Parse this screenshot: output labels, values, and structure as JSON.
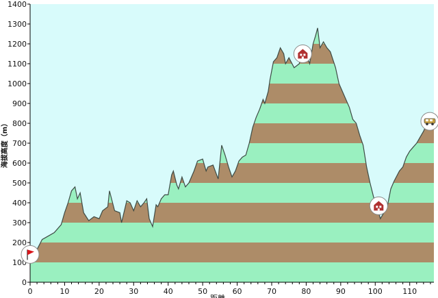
{
  "chart_data": {
    "type": "area",
    "title": "",
    "xlabel": "距離",
    "ylabel": "海拔高度（m）",
    "xlim": [
      0,
      117
    ],
    "ylim": [
      0,
      1400
    ],
    "x_ticks": [
      0,
      10,
      20,
      30,
      40,
      50,
      60,
      70,
      80,
      90,
      100,
      110
    ],
    "y_ticks": [
      0,
      100,
      200,
      300,
      400,
      500,
      600,
      700,
      800,
      900,
      1000,
      1100,
      1200,
      1300,
      1400
    ],
    "band_step": 100,
    "colors": {
      "background": "#d8fbfb",
      "band_green": "#9af0c0",
      "band_brown": "#ad8c68",
      "outline": "#3d4a44",
      "axis": "#000000",
      "marker_red": "#d8151b",
      "marker_hut": "#b03030",
      "marker_vehicle": "#c8a040"
    },
    "profile": {
      "x": [
        0,
        2,
        3.5,
        5,
        7,
        9,
        10,
        11,
        12,
        13,
        13.7,
        14.5,
        15.5,
        17,
        18.5,
        20,
        21,
        22.5,
        23,
        24.5,
        26,
        26.5,
        28,
        29,
        30,
        31,
        32,
        33,
        33.8,
        34.5,
        35.5,
        36.5,
        37,
        38,
        39,
        40,
        41,
        41.5,
        42.5,
        43,
        44,
        45,
        46,
        47.5,
        48.5,
        50,
        51,
        51.5,
        53,
        54.5,
        55.5,
        56.5,
        57.5,
        58.5,
        59.5,
        60.5,
        61.5,
        62.5,
        63.5,
        64.5,
        65.5,
        66.5,
        67.5,
        68,
        69,
        69.5,
        70.5,
        71.5,
        72.5,
        73.5,
        74,
        75,
        76.5,
        78,
        79,
        80,
        81,
        82,
        82.7,
        83.3,
        84,
        85,
        86,
        87,
        88.5,
        89.5,
        91,
        92.5,
        93.5,
        94.5,
        95.5,
        96.5,
        97.5,
        98.5,
        99.5,
        100.5,
        101.5,
        102.5,
        103.5,
        104.5,
        105.5,
        107,
        108,
        109,
        110,
        111,
        112,
        113,
        114,
        115,
        116,
        117
      ],
      "y": [
        130,
        165,
        215,
        230,
        250,
        290,
        350,
        400,
        460,
        480,
        420,
        450,
        350,
        310,
        330,
        320,
        360,
        380,
        460,
        360,
        350,
        300,
        410,
        400,
        360,
        410,
        380,
        400,
        420,
        320,
        280,
        390,
        380,
        420,
        440,
        440,
        540,
        560,
        490,
        470,
        530,
        480,
        500,
        560,
        610,
        620,
        560,
        580,
        590,
        520,
        690,
        640,
        580,
        530,
        560,
        610,
        630,
        640,
        700,
        780,
        830,
        870,
        920,
        900,
        960,
        1020,
        1110,
        1130,
        1180,
        1150,
        1100,
        1130,
        1080,
        1100,
        1180,
        1150,
        1100,
        1200,
        1240,
        1280,
        1180,
        1210,
        1180,
        1160,
        1080,
        1000,
        940,
        880,
        820,
        800,
        740,
        690,
        580,
        500,
        430,
        380,
        320,
        350,
        380,
        470,
        510,
        560,
        580,
        630,
        660,
        680,
        700,
        730,
        760,
        800,
        810,
        820
      ]
    },
    "markers": [
      {
        "name": "start",
        "icon": "flag-icon",
        "x": 0,
        "y": 140
      },
      {
        "name": "hut-1",
        "icon": "hut-icon",
        "x": 79,
        "y": 1150
      },
      {
        "name": "hut-2",
        "icon": "hut-icon",
        "x": 101,
        "y": 385
      },
      {
        "name": "end",
        "icon": "vehicle-icon",
        "x": 117,
        "y": 810
      }
    ]
  }
}
